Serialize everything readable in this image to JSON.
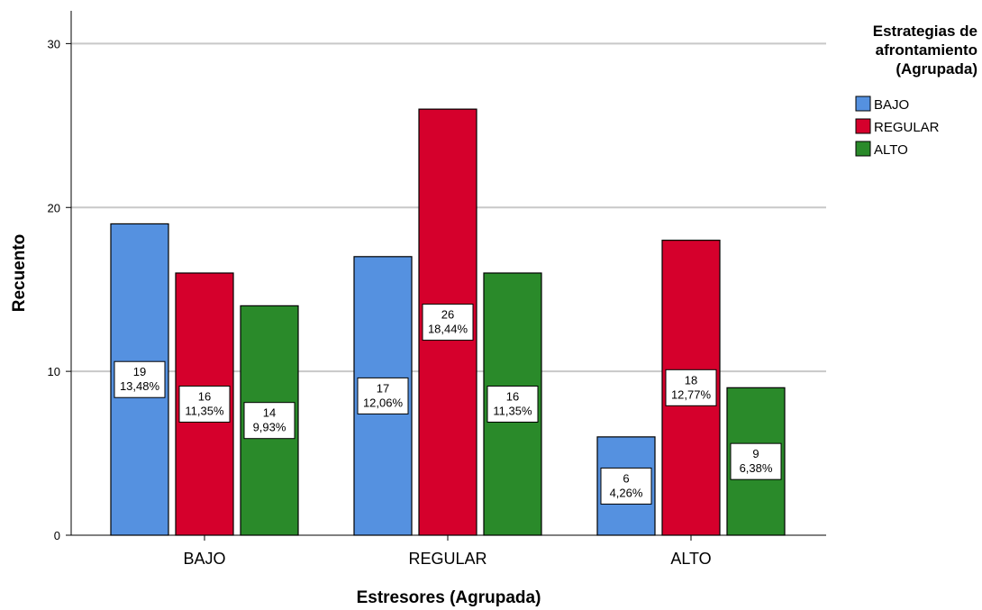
{
  "chart_data": {
    "type": "bar",
    "title": "",
    "xlabel": "Estresores (Agrupada)",
    "ylabel": "Recuento",
    "categories": [
      "BAJO",
      "REGULAR",
      "ALTO"
    ],
    "ylim": [
      0,
      32
    ],
    "yticks": [
      0,
      10,
      20,
      30
    ],
    "grid": true,
    "legend_title": "Estrategias de afrontamiento (Agrupada)",
    "legend_placement": "top-right",
    "series": [
      {
        "name": "BAJO",
        "color": "#5591e0",
        "values": [
          19,
          17,
          6
        ],
        "percent_labels": [
          "13,48%",
          "12,06%",
          "4,26%"
        ]
      },
      {
        "name": "REGULAR",
        "color": "#d5002c",
        "values": [
          16,
          26,
          18
        ],
        "percent_labels": [
          "11,35%",
          "18,44%",
          "12,77%"
        ]
      },
      {
        "name": "ALTO",
        "color": "#2a8a2a",
        "values": [
          14,
          16,
          9
        ],
        "percent_labels": [
          "9,93%",
          "11,35%",
          "6,38%"
        ]
      }
    ]
  }
}
